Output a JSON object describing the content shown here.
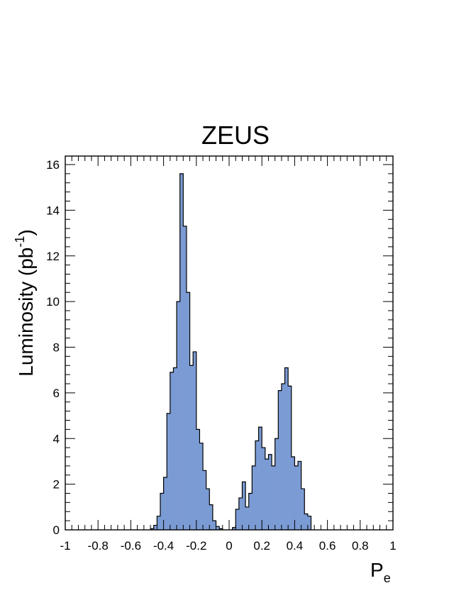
{
  "chart_data": {
    "type": "bar",
    "title": "ZEUS",
    "xlabel": "P",
    "xlabel_subscript": "e",
    "ylabel": "Luminosity (pb",
    "ylabel_superscript": "-1",
    "ylabel_close": ")",
    "xlim": [
      -1,
      1
    ],
    "ylim": [
      0,
      16.4
    ],
    "xticks": [
      "-1",
      "-0.8",
      "-0.6",
      "-0.4",
      "-0.2",
      "0",
      "0.2",
      "0.4",
      "0.6",
      "0.8",
      "1"
    ],
    "yticks": [
      "0",
      "2",
      "4",
      "6",
      "8",
      "10",
      "12",
      "14",
      "16"
    ],
    "grid": false,
    "fill_color": "#7b9bd4",
    "edge_color": "#000000",
    "bin_width": 0.02,
    "bins": [
      {
        "x": -0.48,
        "y": 0.05
      },
      {
        "x": -0.46,
        "y": 0.2
      },
      {
        "x": -0.44,
        "y": 0.6
      },
      {
        "x": -0.42,
        "y": 1.6
      },
      {
        "x": -0.4,
        "y": 2.3
      },
      {
        "x": -0.38,
        "y": 5.1
      },
      {
        "x": -0.36,
        "y": 6.9
      },
      {
        "x": -0.34,
        "y": 7.1
      },
      {
        "x": -0.32,
        "y": 10.0
      },
      {
        "x": -0.3,
        "y": 15.6
      },
      {
        "x": -0.28,
        "y": 13.3
      },
      {
        "x": -0.26,
        "y": 10.4
      },
      {
        "x": -0.24,
        "y": 7.2
      },
      {
        "x": -0.22,
        "y": 7.8
      },
      {
        "x": -0.2,
        "y": 4.4
      },
      {
        "x": -0.18,
        "y": 3.8
      },
      {
        "x": -0.16,
        "y": 2.6
      },
      {
        "x": -0.14,
        "y": 1.8
      },
      {
        "x": -0.12,
        "y": 1.1
      },
      {
        "x": -0.1,
        "y": 0.4
      },
      {
        "x": -0.08,
        "y": 0.15
      },
      {
        "x": -0.06,
        "y": 0.05
      },
      {
        "x": 0.02,
        "y": 0.1
      },
      {
        "x": 0.04,
        "y": 0.9
      },
      {
        "x": 0.06,
        "y": 1.4
      },
      {
        "x": 0.08,
        "y": 2.1
      },
      {
        "x": 0.1,
        "y": 1.0
      },
      {
        "x": 0.12,
        "y": 1.6
      },
      {
        "x": 0.14,
        "y": 2.8
      },
      {
        "x": 0.16,
        "y": 3.9
      },
      {
        "x": 0.18,
        "y": 4.5
      },
      {
        "x": 0.2,
        "y": 3.6
      },
      {
        "x": 0.22,
        "y": 3.1
      },
      {
        "x": 0.24,
        "y": 3.3
      },
      {
        "x": 0.26,
        "y": 2.8
      },
      {
        "x": 0.28,
        "y": 4.0
      },
      {
        "x": 0.3,
        "y": 6.1
      },
      {
        "x": 0.32,
        "y": 6.4
      },
      {
        "x": 0.34,
        "y": 7.1
      },
      {
        "x": 0.36,
        "y": 6.3
      },
      {
        "x": 0.38,
        "y": 3.2
      },
      {
        "x": 0.4,
        "y": 2.8
      },
      {
        "x": 0.42,
        "y": 3.0
      },
      {
        "x": 0.44,
        "y": 1.8
      },
      {
        "x": 0.46,
        "y": 0.7
      },
      {
        "x": 0.48,
        "y": 0.6
      }
    ]
  }
}
